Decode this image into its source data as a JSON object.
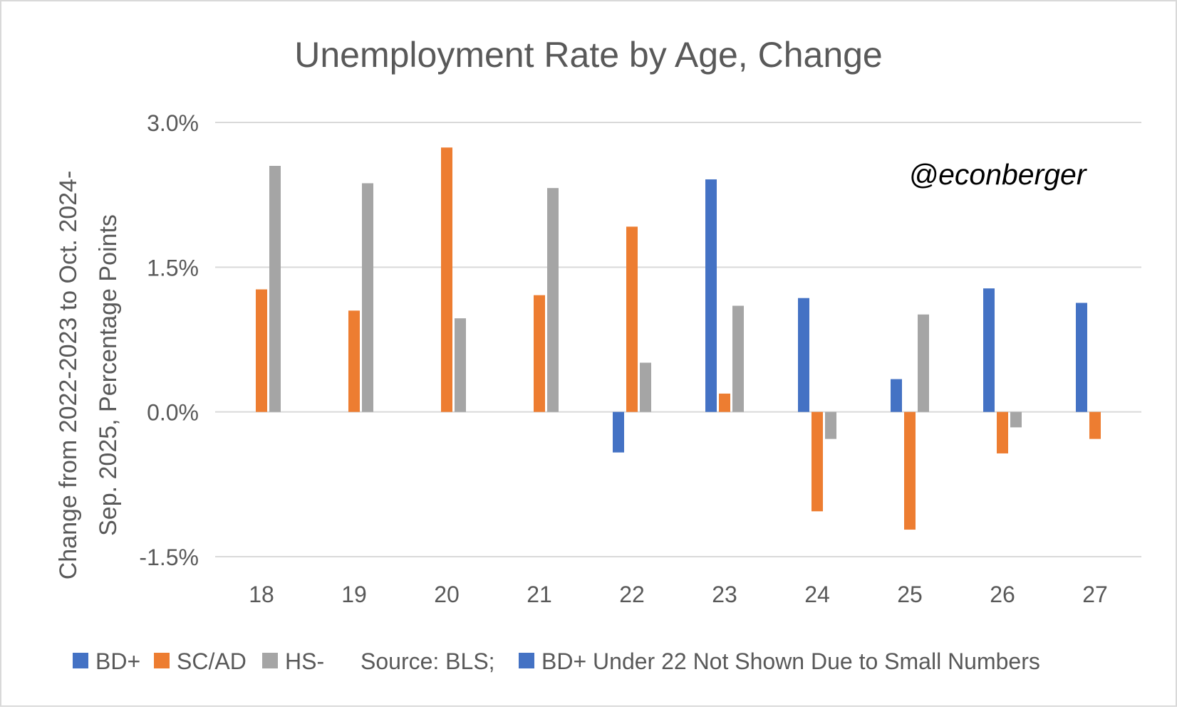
{
  "chart_data": {
    "type": "bar",
    "title": "Unemployment Rate by Age, Change",
    "watermark": "@econberger",
    "ylabel_line1": "Change from 2022-2023 to Oct. 2024-",
    "ylabel_line2": "Sep. 2025, Percentage Points",
    "xlabel": "",
    "ylim": [
      -1.5,
      3.0
    ],
    "y_ticks": [
      {
        "value": -1.5,
        "label": "-1.5%"
      },
      {
        "value": 0.0,
        "label": "0.0%"
      },
      {
        "value": 1.5,
        "label": "1.5%"
      },
      {
        "value": 3.0,
        "label": "3.0%"
      }
    ],
    "grid": true,
    "categories": [
      "18",
      "19",
      "20",
      "21",
      "22",
      "23",
      "24",
      "25",
      "26",
      "27"
    ],
    "series": [
      {
        "name": "BD+",
        "color": "#4472c4",
        "values": [
          null,
          null,
          null,
          null,
          -0.42,
          2.41,
          1.18,
          0.34,
          1.28,
          1.13
        ]
      },
      {
        "name": "SC/AD",
        "color": "#ed7d31",
        "values": [
          1.27,
          1.05,
          2.74,
          1.21,
          1.92,
          0.19,
          -1.03,
          -1.22,
          -0.43,
          -0.28
        ]
      },
      {
        "name": "HS-",
        "color": "#a5a5a5",
        "values": [
          2.55,
          2.37,
          0.97,
          2.32,
          0.51,
          1.1,
          -0.28,
          1.01,
          -0.16,
          null
        ]
      }
    ],
    "legend_position": "bottom",
    "source_note": "Source: BLS;",
    "extra_legend": {
      "color": "#4472c4",
      "label": "BD+ Under 22 Not Shown Due to Small Numbers"
    }
  }
}
